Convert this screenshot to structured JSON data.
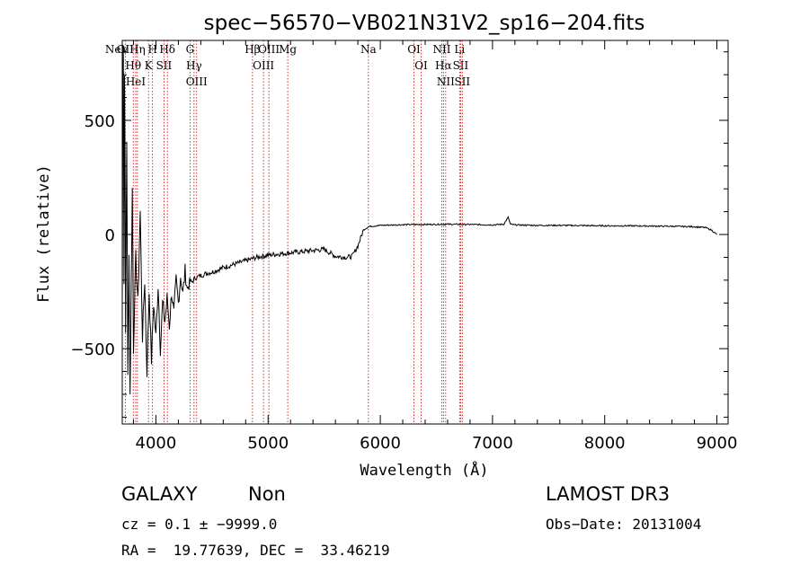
{
  "chart_data": {
    "type": "line",
    "title": "spec−56570−VB021N31V2_sp16−204.fits",
    "xlabel": "Wavelength (Å)",
    "ylabel": "Flux (relative)",
    "xlim": [
      3700,
      9100
    ],
    "ylim": [
      -830,
      850
    ],
    "x_ticks": [
      4000,
      5000,
      6000,
      7000,
      8000,
      9000
    ],
    "y_ticks": [
      -500,
      0,
      500
    ],
    "x_tick_labels": [
      "4000",
      "5000",
      "6000",
      "7000",
      "8000",
      "9000"
    ],
    "y_tick_labels": [
      "−500",
      "0",
      "500"
    ],
    "series": [
      {
        "name": "spectrum",
        "x": [
          3700,
          3705,
          3710,
          3715,
          3720,
          3725,
          3730,
          3740,
          3750,
          3760,
          3770,
          3780,
          3790,
          3800,
          3820,
          3840,
          3860,
          3880,
          3900,
          3920,
          3940,
          3960,
          3980,
          4000,
          4020,
          4040,
          4060,
          4080,
          4100,
          4120,
          4140,
          4160,
          4180,
          4200,
          4220,
          4240,
          4260,
          4280,
          4300,
          4320,
          4350,
          4400,
          4450,
          4500,
          4600,
          4700,
          4800,
          4900,
          5000,
          5100,
          5200,
          5300,
          5400,
          5500,
          5600,
          5700,
          5750,
          5800,
          5850,
          5900,
          6000,
          6200,
          6400,
          6600,
          6800,
          7000,
          7100,
          7140,
          7160,
          7200,
          7400,
          7600,
          7800,
          8000,
          8200,
          8400,
          8600,
          8800,
          8900,
          8950,
          9000
        ],
        "y": [
          -300,
          600,
          850,
          -200,
          700,
          300,
          -400,
          400,
          -600,
          -100,
          -700,
          -200,
          200,
          -500,
          -100,
          -300,
          100,
          -450,
          -200,
          -600,
          -250,
          -550,
          -300,
          -450,
          -220,
          -500,
          -300,
          -380,
          -280,
          -400,
          -250,
          -350,
          -200,
          -300,
          -180,
          -260,
          -160,
          -240,
          -200,
          -210,
          -190,
          -180,
          -170,
          -165,
          -145,
          -130,
          -115,
          -100,
          -90,
          -85,
          -80,
          -75,
          -70,
          -65,
          -95,
          -100,
          -95,
          -50,
          20,
          35,
          40,
          43,
          44,
          45,
          44,
          42,
          45,
          75,
          45,
          42,
          40,
          40,
          39,
          38,
          38,
          37,
          36,
          34,
          30,
          20,
          0
        ]
      }
    ],
    "lines": [
      {
        "wavelength": 3426,
        "label": "NeV"
      },
      {
        "wavelength": 3727,
        "label": "OII"
      },
      {
        "wavelength": 3798,
        "label": "Hθ"
      },
      {
        "wavelength": 3820,
        "label": "HeI"
      },
      {
        "wavelength": 3835,
        "label": "Hη"
      },
      {
        "wavelength": 3934,
        "label": "K"
      },
      {
        "wavelength": 3970,
        "label": "H"
      },
      {
        "wavelength": 4072,
        "label": "SII"
      },
      {
        "wavelength": 4102,
        "label": "Hδ"
      },
      {
        "wavelength": 4304,
        "label": "G"
      },
      {
        "wavelength": 4340,
        "label": "Hγ"
      },
      {
        "wavelength": 4363,
        "label": "OIII"
      },
      {
        "wavelength": 4861,
        "label": "Hβ"
      },
      {
        "wavelength": 4959,
        "label": "OIII"
      },
      {
        "wavelength": 5007,
        "label": "OIII"
      },
      {
        "wavelength": 5175,
        "label": "Mg"
      },
      {
        "wavelength": 5894,
        "label": "Na"
      },
      {
        "wavelength": 6300,
        "label": "OI"
      },
      {
        "wavelength": 6364,
        "label": "OI"
      },
      {
        "wavelength": 6548,
        "label": "NII"
      },
      {
        "wavelength": 6563,
        "label": "Hα"
      },
      {
        "wavelength": 6583,
        "label": "NII"
      },
      {
        "wavelength": 6707,
        "label": "Li"
      },
      {
        "wavelength": 6716,
        "label": "SII"
      },
      {
        "wavelength": 6731,
        "label": "SII"
      }
    ]
  },
  "info": {
    "class": "GALAXY",
    "subclass": "Non",
    "survey": "LAMOST DR3",
    "cz": "cz = 0.1 ± −9999.0",
    "obs_date": "Obs−Date: 20131004",
    "radec": "RA =  19.77639, DEC =  33.46219"
  },
  "colors": {
    "axis": "#000000",
    "spectrum": "#000000",
    "line_marker": "#cc0000"
  }
}
